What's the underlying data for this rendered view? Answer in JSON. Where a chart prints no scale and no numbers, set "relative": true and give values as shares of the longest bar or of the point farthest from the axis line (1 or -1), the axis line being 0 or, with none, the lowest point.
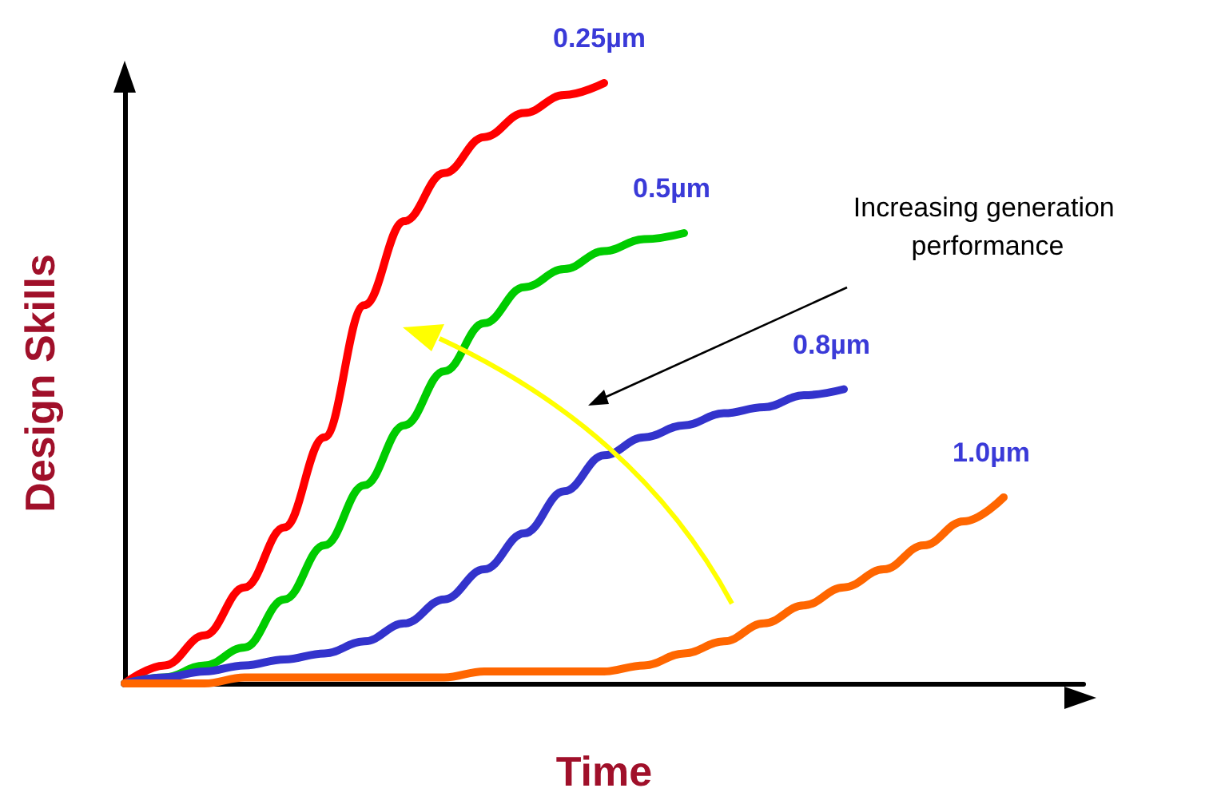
{
  "chart_data": {
    "type": "line",
    "relative": true,
    "xlabel": "Time",
    "ylabel": "Design Skills",
    "legend": false,
    "grid": false,
    "marker": "none",
    "categories": [
      null,
      null,
      null,
      null,
      null,
      null,
      null,
      null,
      null,
      null,
      null,
      null,
      null,
      null,
      null,
      null,
      null,
      null,
      null,
      null,
      null,
      null,
      null,
      null,
      null
    ],
    "series": [
      {
        "name": "0.25µm",
        "color": "#ff0000",
        "values": [
          0,
          0.03,
          0.08,
          0.16,
          0.26,
          0.41,
          0.63,
          0.77,
          0.85,
          0.91,
          0.95,
          0.98,
          1,
          null,
          null,
          null,
          null,
          null,
          null,
          null,
          null,
          null,
          null,
          null,
          null
        ]
      },
      {
        "name": "0.5µm",
        "color": "#00cc00",
        "values": [
          0,
          0.01,
          0.03,
          0.06,
          0.14,
          0.23,
          0.33,
          0.43,
          0.52,
          0.6,
          0.66,
          0.69,
          0.72,
          0.74,
          0.75,
          null,
          null,
          null,
          null,
          null,
          null,
          null,
          null,
          null,
          null
        ]
      },
      {
        "name": "0.8µm",
        "color": "#3333cc",
        "values": [
          0,
          0.01,
          0.02,
          0.03,
          0.04,
          0.05,
          0.07,
          0.1,
          0.14,
          0.19,
          0.25,
          0.32,
          0.38,
          0.41,
          0.43,
          0.45,
          0.46,
          0.48,
          0.49,
          null,
          null,
          null,
          null,
          null,
          null
        ]
      },
      {
        "name": "1.0µm",
        "color": "#ff6600",
        "values": [
          0,
          0,
          0,
          0.01,
          0.01,
          0.01,
          0.01,
          0.01,
          0.01,
          0.02,
          0.02,
          0.02,
          0.02,
          0.03,
          0.05,
          0.07,
          0.1,
          0.13,
          0.16,
          0.19,
          0.23,
          0.27,
          0.31,
          null,
          null
        ]
      }
    ],
    "annotations": [
      "Increasing generation performance"
    ]
  }
}
